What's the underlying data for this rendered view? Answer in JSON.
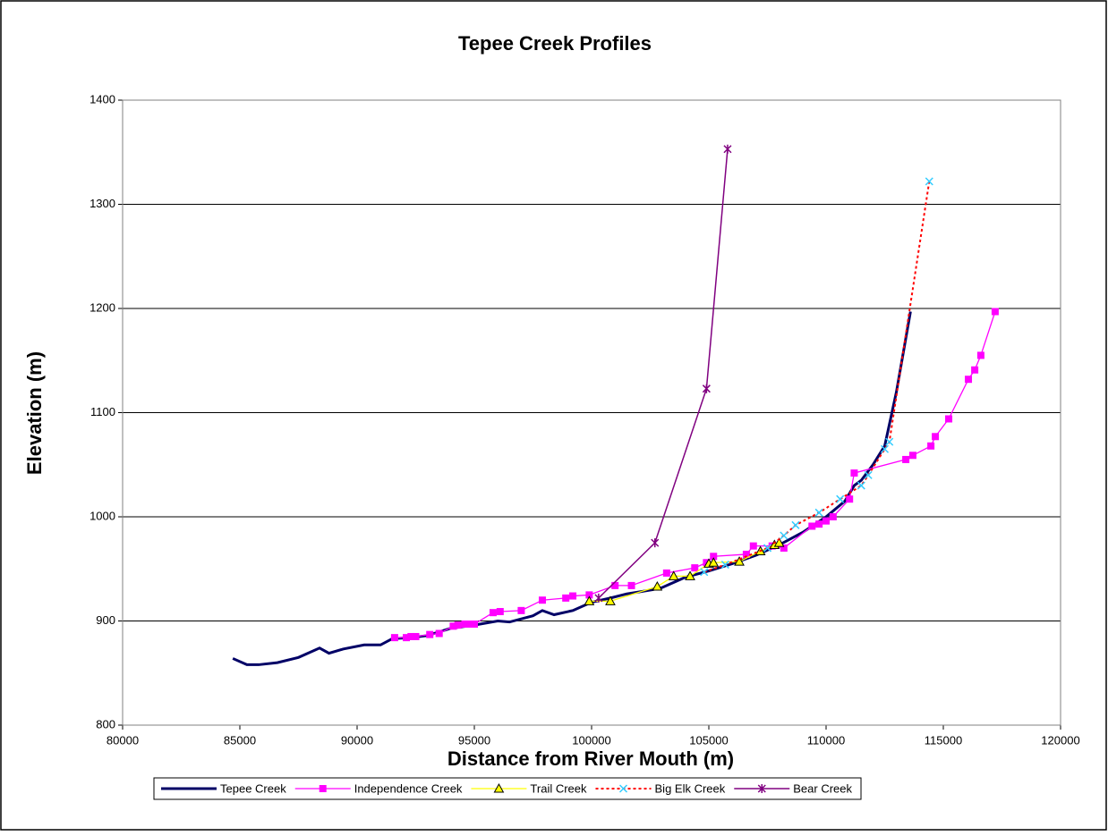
{
  "chart_data": {
    "type": "line",
    "title": "Tepee Creek Profiles",
    "x_label": "Distance from River Mouth (m)",
    "y_label": "Elevation (m)",
    "xlim": [
      80000,
      120000
    ],
    "xticks": [
      80000,
      85000,
      90000,
      95000,
      100000,
      105000,
      110000,
      115000,
      120000
    ],
    "ylim": [
      800,
      1400
    ],
    "yticks": [
      800,
      900,
      1000,
      1100,
      1200,
      1300,
      1400
    ],
    "grid": true,
    "legend": "bottom",
    "series": [
      {
        "name": "Tepee Creek",
        "color": "#000066",
        "marker": "none",
        "dash": "solid",
        "width": 3,
        "x": [
          84700,
          85300,
          85800,
          86600,
          87500,
          88400,
          88800,
          89400,
          90300,
          91000,
          91500,
          92300,
          93000,
          94000,
          95000,
          96000,
          96500,
          97500,
          97900,
          98400,
          99200,
          100000,
          100800,
          101500,
          102600,
          103000,
          104000,
          105000,
          106000,
          107000,
          108000,
          109000,
          110000,
          110800,
          111200,
          111500,
          112000,
          112500,
          113000,
          113600
        ],
        "values": [
          864,
          858,
          858,
          860,
          865,
          874,
          869,
          873,
          877,
          877,
          883,
          884,
          886,
          893,
          896,
          900,
          899,
          905,
          910,
          906,
          910,
          918,
          922,
          926,
          930,
          932,
          942,
          948,
          955,
          963,
          973,
          985,
          1000,
          1015,
          1030,
          1035,
          1050,
          1068,
          1120,
          1197
        ]
      },
      {
        "name": "Independence Creek",
        "color": "#ff00ff",
        "marker": "square",
        "dash": "solid",
        "width": 1.3,
        "x": [
          91600,
          92100,
          92300,
          92500,
          93100,
          93500,
          94100,
          94300,
          94600,
          94900,
          95000,
          95800,
          96100,
          97000,
          97900,
          98900,
          99200,
          99900,
          101000,
          101700,
          103200,
          104400,
          104900,
          105200,
          106600,
          106900,
          107700,
          108200,
          109400,
          109700,
          110000,
          110300,
          111000,
          111200,
          113400,
          113700,
          114470,
          114660,
          115230,
          116070,
          116340,
          116600,
          117210
        ],
        "values": [
          884,
          884,
          885,
          885,
          887,
          888,
          895,
          896,
          897,
          897,
          897,
          908,
          909,
          910,
          920,
          922,
          924,
          925,
          934,
          934,
          946,
          951,
          956,
          962,
          964,
          972,
          972,
          970,
          991,
          993,
          996,
          1000,
          1017,
          1042,
          1055,
          1059,
          1068,
          1077,
          1094,
          1132,
          1141,
          1155,
          1197
        ]
      },
      {
        "name": "Trail Creek",
        "color": "#ffff00",
        "marker": "triangle",
        "dash": "solid",
        "width": 1.3,
        "x": [
          99900,
          100800,
          102800,
          103500,
          104200,
          105000,
          105200,
          106300,
          107200,
          107800,
          108000
        ],
        "values": [
          919,
          919,
          933,
          943,
          943,
          955,
          956,
          957,
          967,
          973,
          975
        ]
      },
      {
        "name": "Big Elk Creek",
        "color": "#ff0000",
        "marker_color": "#33ccff",
        "marker": "x",
        "dash": "dotted",
        "width": 2,
        "x": [
          104800,
          105700,
          107500,
          108200,
          108700,
          109700,
          110600,
          111500,
          111800,
          112500,
          112700,
          114400
        ],
        "values": [
          947,
          954,
          970,
          982,
          992,
          1004,
          1017,
          1030,
          1040,
          1065,
          1072,
          1322
        ]
      },
      {
        "name": "Bear Creek",
        "color": "#800080",
        "marker": "star",
        "dash": "solid",
        "width": 1.5,
        "x": [
          100300,
          102700,
          104900,
          105800
        ],
        "values": [
          922,
          975,
          1123,
          1353
        ]
      }
    ]
  }
}
